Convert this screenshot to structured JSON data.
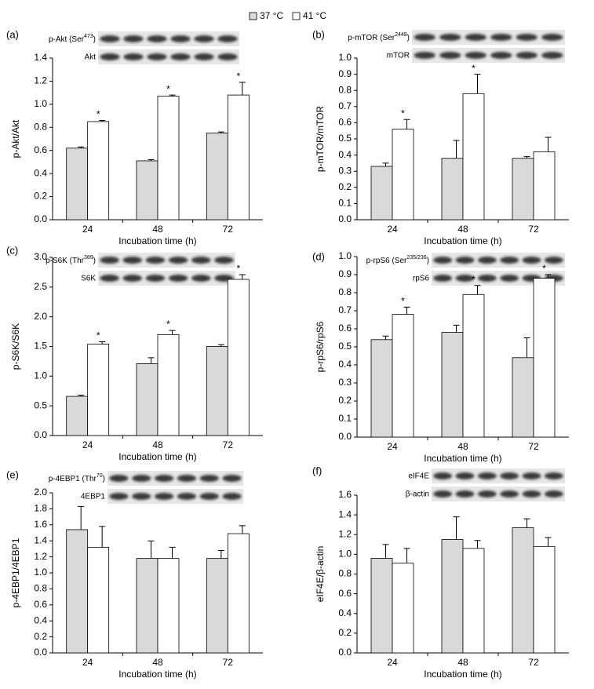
{
  "legend": [
    {
      "name": "37 °C",
      "color": "#d9d9d9"
    },
    {
      "name": "41 °C",
      "color": "#ffffff"
    }
  ],
  "chart_data": [
    {
      "type": "bar",
      "panel": "(a)",
      "ylabel": "p-Akt/Akt",
      "xlabel": "Incubation time (h)",
      "blot_labels": [
        {
          "text": "p-Akt (Ser",
          "sup": "473",
          "tail": ")"
        },
        "Akt"
      ],
      "categories": [
        "24",
        "48",
        "72"
      ],
      "series": [
        {
          "values": [
            0.62,
            0.51,
            0.75
          ],
          "errors": [
            0.01,
            0.01,
            0.01
          ]
        },
        {
          "values": [
            0.85,
            1.07,
            1.08
          ],
          "errors": [
            0.01,
            0.01,
            0.11
          ]
        }
      ],
      "annotations": [
        "*",
        "*",
        "*"
      ],
      "ylim": [
        0,
        1.4
      ],
      "yticks": [
        {
          "value": 0,
          "label": "0.0"
        },
        0.2,
        0.4,
        0.6,
        0.8,
        {
          "value": 1,
          "label": "1.0"
        },
        1.2,
        1.4
      ]
    },
    {
      "type": "bar",
      "panel": "(b)",
      "ylabel": "p-mTOR/mTOR",
      "xlabel": "Incubation time (h)",
      "blot_labels": [
        {
          "text": "p-mTOR (Ser",
          "sup": "2448",
          "tail": ")"
        },
        "mTOR"
      ],
      "categories": [
        "24",
        "48",
        "72"
      ],
      "series": [
        {
          "values": [
            0.33,
            0.38,
            0.38
          ],
          "errors": [
            0.02,
            0.11,
            0.01
          ]
        },
        {
          "values": [
            0.56,
            0.78,
            0.42
          ],
          "errors": [
            0.06,
            0.12,
            0.09
          ]
        }
      ],
      "annotations": [
        "*",
        "*",
        null
      ],
      "ylim": [
        0,
        1
      ],
      "yticks": [
        {
          "value": 0,
          "label": "0.0"
        },
        0.1,
        0.2,
        0.3,
        0.4,
        0.5,
        0.6,
        0.7,
        0.8,
        0.9,
        {
          "value": 1,
          "label": "1.0"
        }
      ]
    },
    {
      "type": "bar",
      "panel": "(c)",
      "ylabel": "p-S6K/S6K",
      "xlabel": "Incubation time (h)",
      "blot_labels": [
        {
          "text": "p-S6K (Thr",
          "sup": "389",
          "tail": ")"
        },
        "S6K"
      ],
      "categories": [
        "24",
        "48",
        "72"
      ],
      "series": [
        {
          "values": [
            0.66,
            1.21,
            1.5
          ],
          "errors": [
            0.02,
            0.1,
            0.03
          ]
        },
        {
          "values": [
            1.54,
            1.7,
            2.63
          ],
          "errors": [
            0.04,
            0.07,
            0.08
          ]
        }
      ],
      "annotations": [
        "*",
        "*",
        "*"
      ],
      "ylim": [
        0,
        3
      ],
      "yticks": [
        {
          "value": 0,
          "label": "0.0"
        },
        0.5,
        {
          "value": 1,
          "label": "1.0"
        },
        1.5,
        {
          "value": 2,
          "label": "2.0"
        },
        2.5,
        {
          "value": 3,
          "label": "3.0"
        }
      ]
    },
    {
      "type": "bar",
      "panel": "(d)",
      "ylabel": "p-rpS6/rpS6",
      "xlabel": "Incubation time (h)",
      "blot_labels": [
        {
          "text": "p-rpS6 (Ser",
          "sup": "235/236",
          "tail": ")"
        },
        "rpS6"
      ],
      "categories": [
        "24",
        "48",
        "72"
      ],
      "series": [
        {
          "values": [
            0.54,
            0.58,
            0.44
          ],
          "errors": [
            0.02,
            0.04,
            0.11
          ]
        },
        {
          "values": [
            0.68,
            0.79,
            0.88
          ],
          "errors": [
            0.04,
            0.05,
            0.02
          ]
        }
      ],
      "annotations": [
        "*",
        "*",
        "*"
      ],
      "ylim": [
        0,
        1
      ],
      "yticks": [
        {
          "value": 0,
          "label": "0.0"
        },
        0.1,
        0.2,
        0.3,
        0.4,
        0.5,
        0.6,
        0.7,
        0.8,
        0.9,
        {
          "value": 1,
          "label": "1.0"
        }
      ]
    },
    {
      "type": "bar",
      "panel": "(e)",
      "ylabel": "p-4EBP1/4EBP1",
      "xlabel": "Incubation time (h)",
      "blot_labels": [
        {
          "text": "p-4EBP1 (Thr",
          "sup": "70",
          "tail": ")"
        },
        "4EBP1"
      ],
      "categories": [
        "24",
        "48",
        "72"
      ],
      "series": [
        {
          "values": [
            1.54,
            1.18,
            1.18
          ],
          "errors": [
            0.29,
            0.22,
            0.1
          ]
        },
        {
          "values": [
            1.32,
            1.18,
            1.49
          ],
          "errors": [
            0.26,
            0.14,
            0.1
          ]
        }
      ],
      "ylim": [
        0,
        2
      ],
      "yticks": [
        {
          "value": 0,
          "label": "0.0"
        },
        0.2,
        0.4,
        0.6,
        0.8,
        {
          "value": 1,
          "label": "1.0"
        },
        1.2,
        1.4,
        1.6,
        1.8,
        {
          "value": 2,
          "label": "2.0"
        }
      ]
    },
    {
      "type": "bar",
      "panel": "(f)",
      "ylabel": "eIF4E/β-actin",
      "xlabel": "Incubation time (h)",
      "blot_labels": [
        "eIF4E",
        "β-actin"
      ],
      "categories": [
        "24",
        "48",
        "72"
      ],
      "series": [
        {
          "values": [
            0.96,
            1.15,
            1.27
          ],
          "errors": [
            0.14,
            0.23,
            0.09
          ]
        },
        {
          "values": [
            0.91,
            1.06,
            1.08
          ],
          "errors": [
            0.15,
            0.08,
            0.09
          ]
        }
      ],
      "ylim": [
        0,
        1.6
      ],
      "yticks": [
        {
          "value": 0,
          "label": "0.0"
        },
        0.2,
        0.4,
        0.6,
        0.8,
        {
          "value": 1,
          "label": "1.0"
        },
        1.2,
        1.4,
        1.6
      ]
    }
  ]
}
